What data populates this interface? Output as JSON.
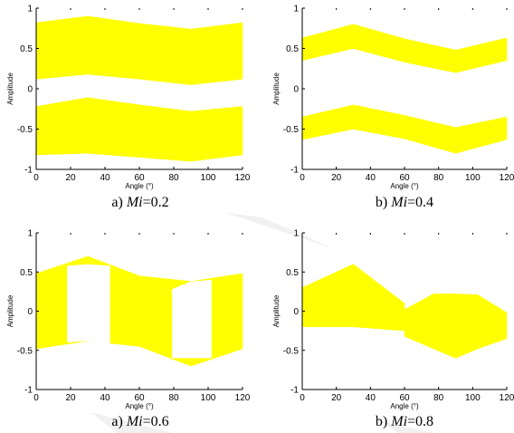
{
  "colors": {
    "fill": "#ffff00",
    "axis": "#000000",
    "background": "#ffffff",
    "watermark": "#e8e8e8"
  },
  "chart_data": [
    {
      "type": "area",
      "caption": {
        "prefix": "a) ",
        "var": "Mi",
        "value": "=0.2"
      },
      "xlabel": "Angle (°)",
      "ylabel": "Amplitude",
      "xlim": [
        0,
        120
      ],
      "ylim": [
        -1,
        1
      ],
      "xticks": [
        "0",
        "20",
        "40",
        "60",
        "80",
        "100",
        "120"
      ],
      "yticks": [
        "-1",
        "-0.5",
        "0",
        "0.5",
        "1"
      ],
      "bands": [
        {
          "x": [
            0,
            30,
            60,
            90,
            120
          ],
          "upper": [
            0.82,
            0.9,
            0.81,
            0.74,
            0.82
          ],
          "lower": [
            0.12,
            0.18,
            0.12,
            0.05,
            0.12
          ]
        },
        {
          "x": [
            0,
            30,
            60,
            90,
            120
          ],
          "upper": [
            -0.22,
            -0.11,
            -0.2,
            -0.28,
            -0.22
          ],
          "lower": [
            -0.82,
            -0.8,
            -0.85,
            -0.9,
            -0.82
          ]
        }
      ]
    },
    {
      "type": "area",
      "caption": {
        "prefix": "b) ",
        "var": "Mi",
        "value": "=0.4"
      },
      "xlabel": "Angle (°)",
      "ylabel": "Amplitude",
      "xlim": [
        0,
        120
      ],
      "ylim": [
        -1,
        1
      ],
      "xticks": [
        "0",
        "20",
        "40",
        "60",
        "80",
        "100",
        "120"
      ],
      "yticks": [
        "-1",
        "-0.5",
        "0",
        "0.5",
        "1"
      ],
      "bands": [
        {
          "x": [
            0,
            30,
            60,
            90,
            120
          ],
          "upper": [
            0.63,
            0.8,
            0.62,
            0.48,
            0.63
          ],
          "lower": [
            0.35,
            0.5,
            0.33,
            0.2,
            0.35
          ]
        },
        {
          "x": [
            0,
            30,
            60,
            90,
            120
          ],
          "upper": [
            -0.35,
            -0.2,
            -0.33,
            -0.48,
            -0.35
          ],
          "lower": [
            -0.63,
            -0.5,
            -0.62,
            -0.8,
            -0.63
          ]
        }
      ]
    },
    {
      "type": "area",
      "caption": {
        "prefix": "a) ",
        "var": "Mi",
        "value": "=0.6"
      },
      "xlabel": "Angle (°)",
      "ylabel": "Amplitude",
      "xlim": [
        0,
        120
      ],
      "ylim": [
        -1,
        1
      ],
      "xticks": [
        "0",
        "20",
        "40",
        "60",
        "80",
        "100",
        "120"
      ],
      "yticks": [
        "-1",
        "-0.5",
        "0",
        "0.5",
        "1"
      ],
      "bands": [
        {
          "x": [
            0,
            30,
            60,
            90,
            120
          ],
          "upper": [
            0.48,
            0.7,
            0.45,
            0.38,
            0.48
          ],
          "lower": [
            -0.48,
            -0.38,
            -0.45,
            -0.7,
            -0.48
          ]
        }
      ],
      "gaps": [
        {
          "x": [
            18,
            30,
            43
          ],
          "upper": [
            0.58,
            0.6,
            0.58
          ],
          "lower": [
            -0.4,
            -0.38,
            -0.45
          ]
        },
        {
          "x": [
            79,
            90,
            102
          ],
          "upper": [
            0.28,
            0.38,
            0.4
          ],
          "lower": [
            -0.6,
            -0.6,
            -0.6
          ]
        }
      ]
    },
    {
      "type": "area",
      "caption": {
        "prefix": "b) ",
        "var": "Mi",
        "value": "=0.8"
      },
      "xlabel": "Angle (°)",
      "ylabel": "Amplitude",
      "xlim": [
        0,
        120
      ],
      "ylim": [
        -1,
        1
      ],
      "xticks": [
        "0",
        "20",
        "40",
        "60",
        "80",
        "100",
        "120"
      ],
      "yticks": [
        "-1",
        "-0.5",
        "0",
        "0.5",
        "1"
      ],
      "bands": [
        {
          "x": [
            0,
            30,
            60
          ],
          "upper": [
            0.3,
            0.6,
            0.1
          ],
          "lower": [
            -0.2,
            -0.2,
            -0.25
          ]
        },
        {
          "x": [
            60,
            77,
            90,
            103,
            120
          ],
          "upper": [
            0.02,
            0.22,
            0.22,
            0.21,
            -0.02
          ],
          "lower": [
            -0.32,
            -0.48,
            -0.6,
            -0.48,
            -0.35
          ]
        }
      ]
    }
  ]
}
